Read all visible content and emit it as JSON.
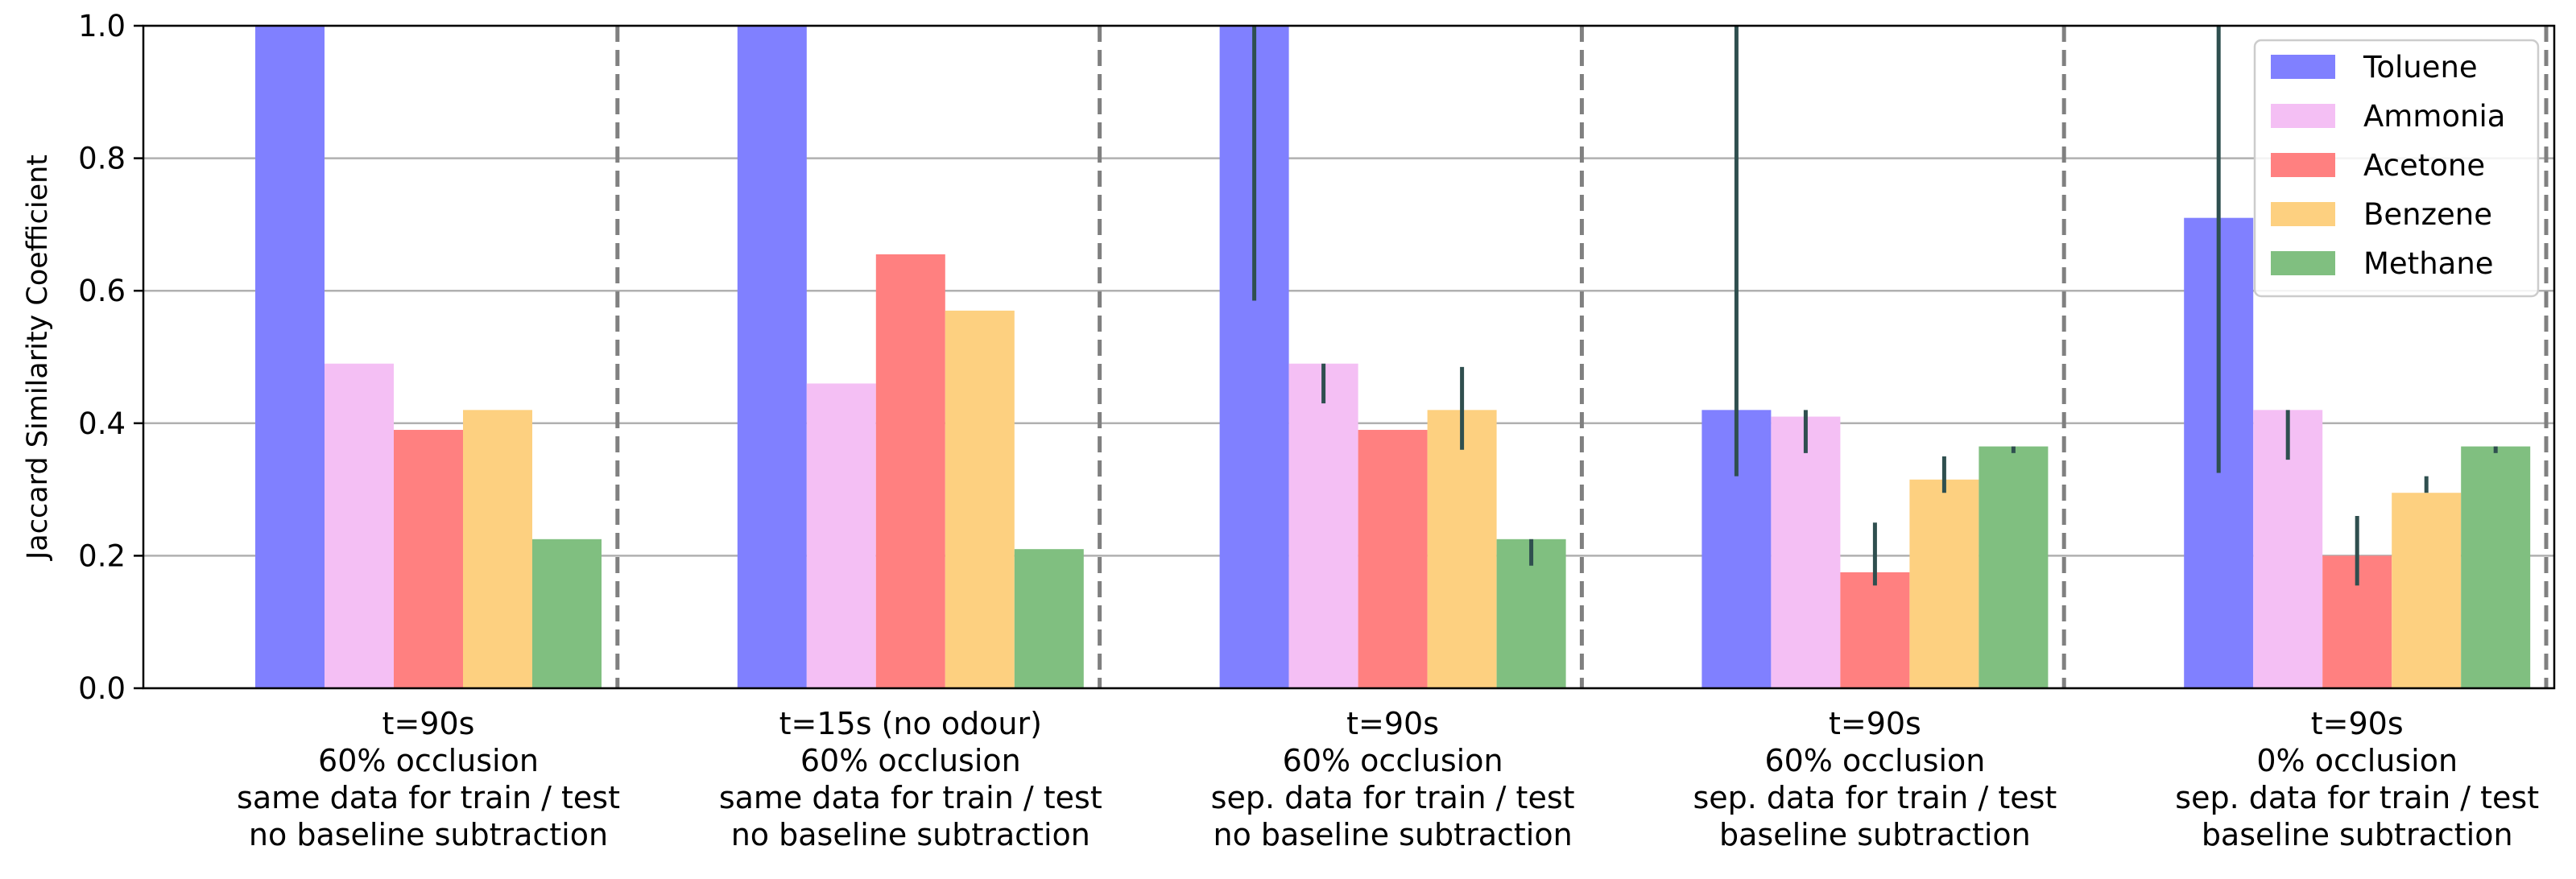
{
  "chart_data": {
    "type": "bar",
    "ylabel": "Jaccard Similarity Coefficient",
    "ylim": [
      0,
      1.0
    ],
    "yticks": [
      "0.0",
      "0.2",
      "0.4",
      "0.6",
      "0.8",
      "1.0"
    ],
    "grid": "horizontal",
    "legend_position": "top-right",
    "categories": [
      [
        "t=90s",
        "60% occlusion",
        "same data for train / test",
        "no baseline subtraction"
      ],
      [
        "t=15s (no odour)",
        "60% occlusion",
        "same data for train / test",
        "no baseline subtraction"
      ],
      [
        "t=90s",
        "60% occlusion",
        "sep. data for train / test",
        "no baseline subtraction"
      ],
      [
        "t=90s",
        "60% occlusion",
        "sep. data for train / test",
        "baseline subtraction"
      ],
      [
        "t=90s",
        "0% occlusion",
        "sep. data for train / test",
        "baseline subtraction"
      ]
    ],
    "series": [
      {
        "name": "Toluene",
        "color": "#8080ff",
        "values": [
          1.0,
          1.0,
          1.0,
          0.42,
          0.71
        ],
        "errors": [
          null,
          null,
          [
            0.585,
            1.0
          ],
          [
            0.32,
            1.0
          ],
          [
            0.325,
            1.0
          ]
        ]
      },
      {
        "name": "Ammonia",
        "color": "#f4bff4",
        "values": [
          0.49,
          0.46,
          0.49,
          0.41,
          0.42
        ],
        "errors": [
          null,
          null,
          [
            0.43,
            0.49
          ],
          [
            0.355,
            0.42
          ],
          [
            0.345,
            0.42
          ]
        ]
      },
      {
        "name": "Acetone",
        "color": "#ff8080",
        "values": [
          0.39,
          0.655,
          0.39,
          0.175,
          0.2
        ],
        "errors": [
          null,
          null,
          null,
          [
            0.155,
            0.25
          ],
          [
            0.155,
            0.26
          ]
        ]
      },
      {
        "name": "Benzene",
        "color": "#fdd080",
        "values": [
          0.42,
          0.57,
          0.42,
          0.315,
          0.295
        ],
        "errors": [
          null,
          null,
          [
            0.36,
            0.485
          ],
          [
            0.295,
            0.35
          ],
          [
            0.295,
            0.32
          ]
        ]
      },
      {
        "name": "Methane",
        "color": "#80bf80",
        "values": [
          0.225,
          0.21,
          0.225,
          0.365,
          0.365
        ],
        "errors": [
          null,
          null,
          [
            0.185,
            0.225
          ],
          [
            0.355,
            0.365
          ],
          [
            0.355,
            0.365
          ]
        ]
      }
    ]
  }
}
